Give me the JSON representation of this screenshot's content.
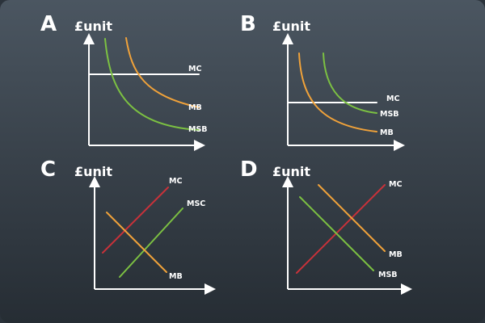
{
  "colors": {
    "mc": "#ffffff",
    "mb": "#f0a23a",
    "msb": "#7cc142",
    "mc_red": "#c8323a",
    "msc": "#7cc142"
  },
  "panels": [
    {
      "letter": "A",
      "ylabel": "£unit",
      "curves": [
        {
          "label": "MC",
          "color": "#ffffff"
        },
        {
          "label": "MB",
          "color": "#f0a23a"
        },
        {
          "label": "MSB",
          "color": "#7cc142"
        }
      ]
    },
    {
      "letter": "B",
      "ylabel": "£unit",
      "curves": [
        {
          "label": "MC",
          "color": "#ffffff"
        },
        {
          "label": "MSB",
          "color": "#7cc142"
        },
        {
          "label": "MB",
          "color": "#f0a23a"
        }
      ]
    },
    {
      "letter": "C",
      "ylabel": "£unit",
      "curves": [
        {
          "label": "MC",
          "color": "#c8323a"
        },
        {
          "label": "MSC",
          "color": "#7cc142"
        },
        {
          "label": "MB",
          "color": "#f0a23a"
        }
      ]
    },
    {
      "letter": "D",
      "ylabel": "£unit",
      "curves": [
        {
          "label": "MC",
          "color": "#c8323a"
        },
        {
          "label": "MB",
          "color": "#f0a23a"
        },
        {
          "label": "MSB",
          "color": "#7cc142"
        }
      ]
    }
  ]
}
